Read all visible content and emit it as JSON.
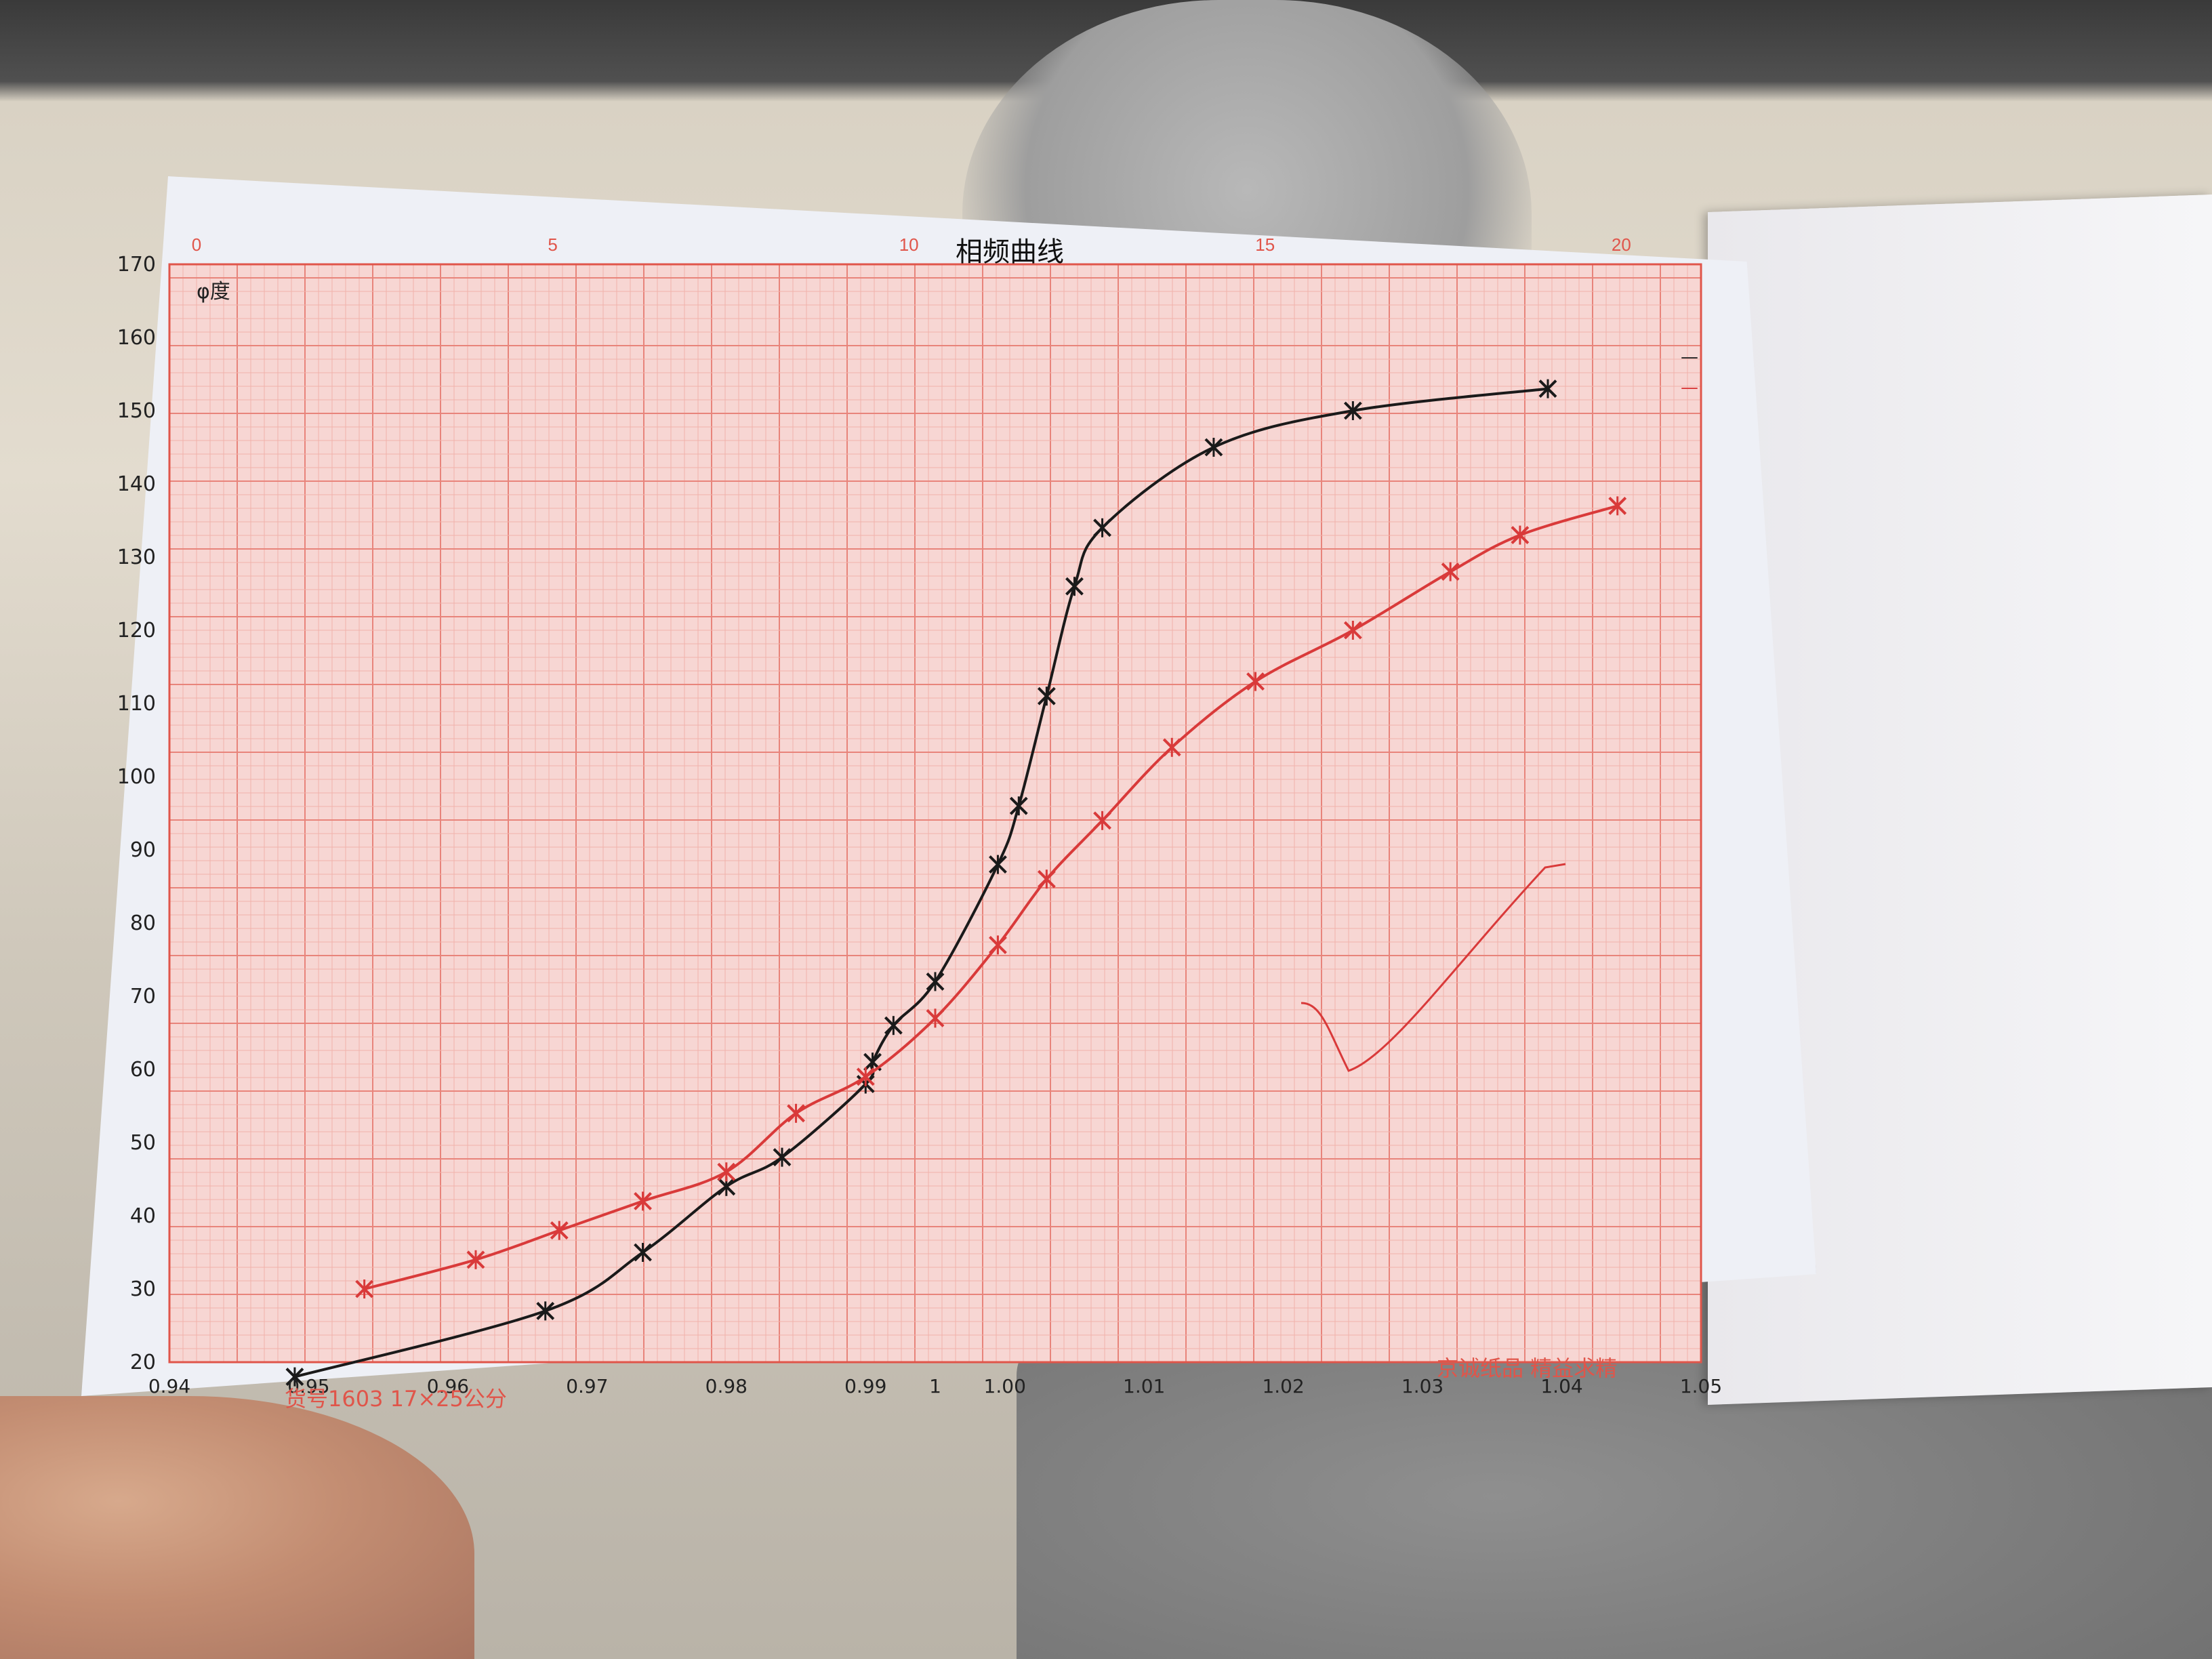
{
  "chart_data": {
    "type": "line",
    "title": "相频曲线",
    "ylabel": "φ度",
    "xlabel": "",
    "ylim": [
      20,
      170
    ],
    "xlim": [
      0.94,
      1.05
    ],
    "grid": true,
    "legend_position": "top-right",
    "y_ticks": [
      "20",
      "30",
      "40",
      "50",
      "60",
      "70",
      "80",
      "90",
      "100",
      "110",
      "120",
      "130",
      "140",
      "150",
      "160",
      "170"
    ],
    "x_ticks": [
      "0.94",
      "0.95",
      "0.96",
      "0.97",
      "0.98",
      "0.99",
      "1",
      "1.00",
      "1.01",
      "1.02",
      "1.03",
      "1.04",
      "1.05"
    ],
    "x_tick_values": [
      0.94,
      0.95,
      0.96,
      0.97,
      0.98,
      0.99,
      0.995,
      1.0,
      1.01,
      1.02,
      1.03,
      1.04,
      1.05
    ],
    "top_ticks": [
      "0",
      "5",
      "10",
      "15",
      "20"
    ],
    "series": [
      {
        "name": "",
        "color": "#1a1a1a",
        "x": [
          0.949,
          0.967,
          0.974,
          0.98,
          0.984,
          0.99,
          0.9905,
          0.992,
          0.995,
          0.9995,
          1.001,
          1.003,
          1.005,
          1.007,
          1.015,
          1.025,
          1.039
        ],
        "y": [
          18,
          27,
          35,
          44,
          48,
          58,
          61,
          66,
          72,
          88,
          96,
          111,
          126,
          134,
          145,
          150,
          153
        ]
      },
      {
        "name": "",
        "color": "#d93a3a",
        "x": [
          0.954,
          0.962,
          0.968,
          0.974,
          0.98,
          0.985,
          0.99,
          0.995,
          0.9995,
          1.003,
          1.007,
          1.012,
          1.018,
          1.025,
          1.032,
          1.037,
          1.044
        ],
        "y": [
          30,
          34,
          38,
          42,
          46,
          54,
          59,
          67,
          77,
          86,
          94,
          104,
          113,
          120,
          128,
          133,
          137
        ]
      }
    ]
  },
  "footer": {
    "left": "货号1603 17×25公分",
    "right": "京诚纸品 精益求精"
  },
  "legend_marks": [
    "—",
    "—"
  ]
}
